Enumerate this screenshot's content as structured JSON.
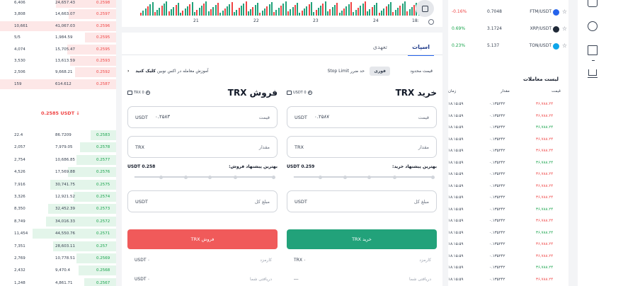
{
  "colors": {
    "buy": "#22a27a",
    "sell": "#f05a5a",
    "positive": "#16a34a",
    "negative": "#ef4444",
    "accent": "#2563eb"
  },
  "orderbook": {
    "asks": [
      {
        "amount": "6,406",
        "total": "24,657.43",
        "price": "0.2598"
      },
      {
        "amount": "3,808",
        "total": "14,663.07",
        "price": "0.2597"
      },
      {
        "amount": "10,661",
        "total": "41,067.03",
        "price": "0.2596"
      },
      {
        "amount": "5/5",
        "total": "1,984.59",
        "price": "0.2595"
      },
      {
        "amount": "4,074",
        "total": "15,705.47",
        "price": "0.2595"
      },
      {
        "amount": "3,530",
        "total": "13,613.59",
        "price": "0.2593"
      },
      {
        "amount": "2,506",
        "total": "9,668.21",
        "price": "0.2592"
      },
      {
        "amount": "159",
        "total": "614.612",
        "price": "0.2587"
      }
    ],
    "mid_price": "0.2585 USDT ↓",
    "bids": [
      {
        "amount": "22.4",
        "total": "86.7209",
        "price": "0.2583"
      },
      {
        "amount": "2,057",
        "total": "7,979.05",
        "price": "0.2578"
      },
      {
        "amount": "2,754",
        "total": "10,686.85",
        "price": "0.2577"
      },
      {
        "amount": "4,526",
        "total": "17,569.88",
        "price": "0.2576"
      },
      {
        "amount": "7,916",
        "total": "30,741.75",
        "price": "0.2575"
      },
      {
        "amount": "3,326",
        "total": "12,921.52",
        "price": "0.2574"
      },
      {
        "amount": "8,350",
        "total": "32,452.39",
        "price": "0.2573"
      },
      {
        "amount": "8,749",
        "total": "34,016.33",
        "price": "0.2572"
      },
      {
        "amount": "11,454",
        "total": "44,550.76",
        "price": "0.2571"
      },
      {
        "amount": "7,351",
        "total": "28,603.11",
        "price": "0.257"
      },
      {
        "amount": "2,769",
        "total": "10,778.51",
        "price": "0.2569"
      },
      {
        "amount": "2,432",
        "total": "9,470.4",
        "price": "0.2568"
      },
      {
        "amount": "1,248",
        "total": "4,861.71",
        "price": "0.2567"
      }
    ]
  },
  "chart": {
    "x_ticks": [
      "21",
      "22",
      "23",
      "24",
      "18:"
    ]
  },
  "trade": {
    "tabs": {
      "spot": "اسپات",
      "futures": "تعهدی"
    },
    "order_types": {
      "limit": "قیمت محدود",
      "market": "فوری",
      "stop_limit": "حد ضرر Stop Limit"
    },
    "tutorial": {
      "text": "آموزش معامله در اکس نوبین",
      "link": "کلیک کنید"
    },
    "buy": {
      "title": "خرید TRX",
      "wallet": "USDT 0",
      "price_label": "قیمت",
      "price_value": "۰.۲۵۸۷",
      "price_currency": "USDT",
      "amount_label": "مقدار",
      "amount_currency": "TRX",
      "best_label": "بهترین پیشنهاد خرید:",
      "best_value": "USDT 0.259",
      "total_label": "مبلغ کل",
      "total_currency": "USDT",
      "button": "خرید TRX",
      "fee_label": "کارمزد",
      "fee_value": "TRX ۰",
      "receive_label": "دریافتی شما",
      "receive_value": "---"
    },
    "sell": {
      "title": "فروش TRX",
      "wallet": "TRX 0",
      "price_label": "قیمت",
      "price_value": "۰.۲۵۸۳",
      "price_currency": "USDT",
      "amount_label": "مقدار",
      "amount_currency": "TRX",
      "best_label": "بهترین پیشنهاد فروش:",
      "best_value": "USDT 0.258",
      "total_label": "مبلغ کل",
      "total_currency": "USDT",
      "button": "فروش TRX",
      "fee_label": "کارمزد",
      "fee_value": "USDT ۰",
      "receive_label": "دریافتی شما",
      "receive_value": "USDT ۰"
    }
  },
  "markets": [
    {
      "change": "-0.16%",
      "price": "0.7048",
      "symbol": "FTM/USDT",
      "icon": "ftm-icon",
      "color": "#2563eb",
      "dir": "neg"
    },
    {
      "change": "0.69%",
      "price": "3.1724",
      "symbol": "XRP/USDT",
      "icon": "xrp-icon",
      "color": "#1f2937",
      "dir": "pos"
    },
    {
      "change": "0.23%",
      "price": "5.137",
      "symbol": "TON/USDT",
      "icon": "ton-icon",
      "color": "#0ea5e9",
      "dir": "pos"
    }
  ],
  "history": {
    "title": "لیست معاملات",
    "headers": {
      "price": "قیمت",
      "amount": "مقدار",
      "time": "زمان"
    },
    "rows": [
      {
        "time": "۱۸:۱۵:۵۹",
        "amount": "۰.۱۳۵۲۴۲",
        "price": "۳۶,۷۸۸.۲۴",
        "dir": "neg"
      },
      {
        "time": "۱۸:۱۵:۵۹",
        "amount": "۰.۱۳۵۲۴۲",
        "price": "۳۶,۷۸۸.۲۴",
        "dir": "neg"
      },
      {
        "time": "۱۸:۱۵:۵۹",
        "amount": "۰.۱۳۵۲۴۲",
        "price": "۳۶,۷۸۸.۲۴",
        "dir": "pos"
      },
      {
        "time": "۱۸:۱۵:۵۹",
        "amount": "۰.۱۳۵۲۴۲",
        "price": "۳۶,۷۸۸.۲۴",
        "dir": "neg"
      },
      {
        "time": "۱۸:۱۵:۵۹",
        "amount": "۰.۱۳۵۲۴۲",
        "price": "۳۶,۷۸۸.۲۴",
        "dir": "neg"
      },
      {
        "time": "۱۸:۱۵:۵۹",
        "amount": "۰.۱۳۵۲۴۲",
        "price": "۳۶,۷۸۸.۲۴",
        "dir": "pos"
      },
      {
        "time": "۱۸:۱۵:۵۹",
        "amount": "۰.۱۳۵۲۴۲",
        "price": "۳۶,۷۸۸.۲۴",
        "dir": "neg"
      },
      {
        "time": "۱۸:۱۵:۵۹",
        "amount": "۰.۱۳۵۲۴۲",
        "price": "۳۶,۷۸۸.۲۴",
        "dir": "neg"
      },
      {
        "time": "۱۸:۱۵:۵۹",
        "amount": "۰.۱۳۵۲۴۲",
        "price": "۳۶,۷۸۸.۲۴",
        "dir": "neg"
      },
      {
        "time": "۱۸:۱۵:۵۹",
        "amount": "۰.۱۳۵۲۴۲",
        "price": "۳۶,۷۸۸.۲۴",
        "dir": "pos"
      },
      {
        "time": "۱۸:۱۵:۵۹",
        "amount": "۰.۱۳۵۲۴۲",
        "price": "۳۶,۷۸۸.۲۴",
        "dir": "neg"
      },
      {
        "time": "۱۸:۱۵:۵۹",
        "amount": "۰.۱۳۵۲۴۲",
        "price": "۳۶,۷۸۸.۲۴",
        "dir": "pos"
      },
      {
        "time": "۱۸:۱۵:۵۹",
        "amount": "۰.۱۳۵۲۴۲",
        "price": "۳۶,۷۸۸.۲۴",
        "dir": "neg"
      },
      {
        "time": "۱۸:۱۵:۵۹",
        "amount": "۰.۱۳۵۲۴۲",
        "price": "۳۶,۷۸۸.۲۴",
        "dir": "neg"
      },
      {
        "time": "۱۸:۱۵:۵۹",
        "amount": "۰.۱۳۵۲۴۲",
        "price": "۳۶,۷۸۸.۲۴",
        "dir": "pos"
      },
      {
        "time": "۱۸:۱۵:۵۹",
        "amount": "۰.۱۳۵۲۴۲",
        "price": "۳۶,۷۸۸.۲۴",
        "dir": "neg"
      }
    ]
  },
  "nav_icons": [
    "wallet-icon",
    "settings-icon",
    "book-icon",
    "crown-icon"
  ]
}
